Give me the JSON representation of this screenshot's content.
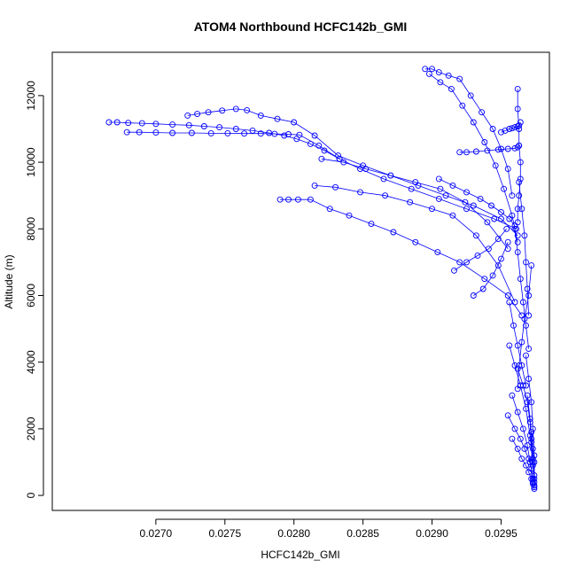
{
  "chart_data": {
    "type": "scatter",
    "title": "ATOM4 Northbound HCFC142b_GMI",
    "xlabel": "HCFC142b_GMI",
    "ylabel": "Altitude (m)",
    "xlim": [
      0.02625,
      0.02985
    ],
    "ylim": [
      -450,
      13300
    ],
    "xticks": [
      0.027,
      0.0275,
      0.028,
      0.0285,
      0.029,
      0.0295
    ],
    "xtick_labels": [
      "0.0270",
      "0.0275",
      "0.0280",
      "0.0285",
      "0.0290",
      "0.0295"
    ],
    "yticks": [
      0,
      2000,
      4000,
      6000,
      8000,
      10000,
      12000
    ],
    "ytick_labels": [
      "0",
      "2000",
      "4000",
      "6000",
      "8000",
      "10000",
      "12000"
    ],
    "grid": false,
    "marker": "open-circle",
    "color": "#0000ff",
    "series": [
      {
        "x": [
          0.02666,
          0.02672,
          0.0268,
          0.0269,
          0.027,
          0.02712,
          0.02724,
          0.02735,
          0.02746,
          0.02758,
          0.0277,
          0.02782,
          0.02793,
          0.02802,
          0.02812,
          0.02822,
          0.02833
        ],
        "y": [
          11200,
          11200,
          11180,
          11170,
          11150,
          11130,
          11110,
          11080,
          11050,
          11000,
          10950,
          10880,
          10800,
          10700,
          10550,
          10350,
          10100
        ]
      },
      {
        "x": [
          0.02679,
          0.02688,
          0.027,
          0.02712,
          0.02726,
          0.0274,
          0.02752,
          0.02764,
          0.02776,
          0.02786,
          0.02796,
          0.02804,
          0.02818,
          0.02833,
          0.02848,
          0.02865,
          0.02885,
          0.02905,
          0.02925,
          0.02945,
          0.02961
        ],
        "y": [
          10900,
          10900,
          10890,
          10880,
          10880,
          10870,
          10870,
          10860,
          10860,
          10850,
          10840,
          10820,
          10500,
          10100,
          9800,
          9500,
          9200,
          8900,
          8600,
          8300,
          8000
        ]
      },
      {
        "x": [
          0.02723,
          0.0273,
          0.02738,
          0.02748,
          0.02758,
          0.02766,
          0.02776,
          0.02788,
          0.028,
          0.02815,
          0.02832,
          0.0285,
          0.0287,
          0.0289,
          0.0291,
          0.0293,
          0.0295,
          0.02962
        ],
        "y": [
          11400,
          11450,
          11500,
          11550,
          11600,
          11560,
          11400,
          11300,
          11200,
          10800,
          10200,
          9900,
          9600,
          9300,
          9000,
          8700,
          8300,
          7800
        ]
      },
      {
        "x": [
          0.0279,
          0.02796,
          0.02803,
          0.02812,
          0.02826,
          0.0284,
          0.02856,
          0.02872,
          0.02888,
          0.02904,
          0.0292,
          0.02938,
          0.02955,
          0.02965
        ],
        "y": [
          8880,
          8880,
          8880,
          8880,
          8600,
          8400,
          8150,
          7900,
          7600,
          7300,
          7000,
          6500,
          6000,
          5400
        ]
      },
      {
        "x": [
          0.02815,
          0.0283,
          0.02848,
          0.02866,
          0.02884,
          0.029,
          0.02915,
          0.02932,
          0.02948,
          0.0296
        ],
        "y": [
          9300,
          9250,
          9100,
          9000,
          8800,
          8600,
          8400,
          7800,
          6900,
          5800
        ]
      },
      {
        "x": [
          0.0282,
          0.02836,
          0.02852,
          0.0287,
          0.02888,
          0.02906,
          0.02924,
          0.0294,
          0.02955
        ],
        "y": [
          10100,
          10000,
          9800,
          9600,
          9400,
          9200,
          8800,
          8200,
          7400
        ]
      },
      {
        "x": [
          0.02895,
          0.029,
          0.02905,
          0.02912,
          0.0292,
          0.02928,
          0.02936,
          0.02944,
          0.0295,
          0.02955,
          0.02958
        ],
        "y": [
          12800,
          12800,
          12700,
          12600,
          12500,
          12000,
          11500,
          11000,
          10400,
          9800,
          9000
        ]
      },
      {
        "x": [
          0.02898,
          0.02906,
          0.02914,
          0.02922,
          0.0293,
          0.02938,
          0.02946,
          0.02952,
          0.02958,
          0.02962
        ],
        "y": [
          12650,
          12400,
          12200,
          11700,
          11200,
          10600,
          9900,
          9200,
          8400,
          7600
        ]
      },
      {
        "x": [
          0.0292,
          0.02925,
          0.02932,
          0.0294,
          0.02948,
          0.02955,
          0.0296,
          0.02962,
          0.02963
        ],
        "y": [
          10300,
          10300,
          10320,
          10350,
          10380,
          10400,
          10420,
          10450,
          10500
        ]
      },
      {
        "x": [
          0.0295,
          0.02953,
          0.02956,
          0.02958,
          0.0296,
          0.02962,
          0.02963,
          0.02964
        ],
        "y": [
          10900,
          10950,
          11000,
          11020,
          11050,
          11080,
          11100,
          11200
        ]
      },
      {
        "x": [
          0.02962,
          0.02962,
          0.02963,
          0.02963,
          0.02964,
          0.02964,
          0.02963,
          0.02962,
          0.02962
        ],
        "y": [
          12200,
          11600,
          11000,
          10500,
          10000,
          9500,
          9000,
          8600,
          8200
        ]
      },
      {
        "x": [
          0.02905,
          0.02915,
          0.02925,
          0.02935,
          0.02943,
          0.0295,
          0.02956,
          0.0296
        ],
        "y": [
          9500,
          9300,
          9100,
          8900,
          8700,
          8500,
          8300,
          8100
        ]
      },
      {
        "x": [
          0.0293,
          0.02937,
          0.02944,
          0.0295,
          0.02955
        ],
        "y": [
          6000,
          6200,
          6600,
          7100,
          7600
        ]
      },
      {
        "x": [
          0.02916,
          0.02925,
          0.02933,
          0.02941,
          0.02948,
          0.02954
        ],
        "y": [
          6750,
          7000,
          7200,
          7400,
          7700,
          8000
        ]
      },
      {
        "x": [
          0.02958,
          0.02962,
          0.02965,
          0.02968,
          0.0297,
          0.02972,
          0.02973,
          0.02974
        ],
        "y": [
          1700,
          1400,
          1100,
          900,
          700,
          500,
          350,
          200
        ]
      },
      {
        "x": [
          0.02955,
          0.0296,
          0.02964,
          0.02967,
          0.0297,
          0.02972,
          0.02973
        ],
        "y": [
          2400,
          2000,
          1700,
          1400,
          1100,
          800,
          400
        ]
      },
      {
        "x": [
          0.02958,
          0.02962,
          0.02966,
          0.02969,
          0.02971,
          0.02973
        ],
        "y": [
          3000,
          2500,
          2000,
          1500,
          1000,
          500
        ]
      },
      {
        "x": [
          0.02962,
          0.02966,
          0.02969,
          0.02971,
          0.02972,
          0.02973,
          0.02974
        ],
        "y": [
          3800,
          3300,
          2800,
          2200,
          1600,
          1000,
          300
        ]
      },
      {
        "x": [
          0.02956,
          0.0296,
          0.02964,
          0.02968,
          0.02971,
          0.02973
        ],
        "y": [
          4500,
          3900,
          3300,
          2600,
          1800,
          900
        ]
      },
      {
        "x": [
          0.02968,
          0.0297,
          0.02972,
          0.02973,
          0.02974,
          0.02974
        ],
        "y": [
          4200,
          3500,
          2800,
          2000,
          1200,
          400
        ]
      },
      {
        "x": [
          0.02972,
          0.0297,
          0.02967,
          0.02965,
          0.02963,
          0.02962
        ],
        "y": [
          6900,
          6000,
          5300,
          4600,
          3900,
          3200
        ]
      },
      {
        "x": [
          0.0296,
          0.02962,
          0.02964,
          0.02966,
          0.02968,
          0.0297
        ],
        "y": [
          8000,
          7300,
          6500,
          5800,
          5100,
          4400
        ]
      },
      {
        "x": [
          0.02963,
          0.02965,
          0.02967,
          0.02968,
          0.02969,
          0.0297
        ],
        "y": [
          9400,
          8600,
          7800,
          7000,
          6200,
          5400
        ]
      },
      {
        "x": [
          0.02969,
          0.02971,
          0.02972,
          0.02973,
          0.02974
        ],
        "y": [
          3000,
          2300,
          1700,
          1100,
          500
        ]
      },
      {
        "x": [
          0.02956,
          0.02959,
          0.02962,
          0.02965,
          0.02968
        ],
        "y": [
          5800,
          5100,
          4500,
          3900,
          3300
        ]
      },
      {
        "x": [
          0.02972,
          0.02973,
          0.02974,
          0.02974,
          0.02974
        ],
        "y": [
          1900,
          1400,
          1000,
          600,
          250
        ]
      }
    ]
  }
}
